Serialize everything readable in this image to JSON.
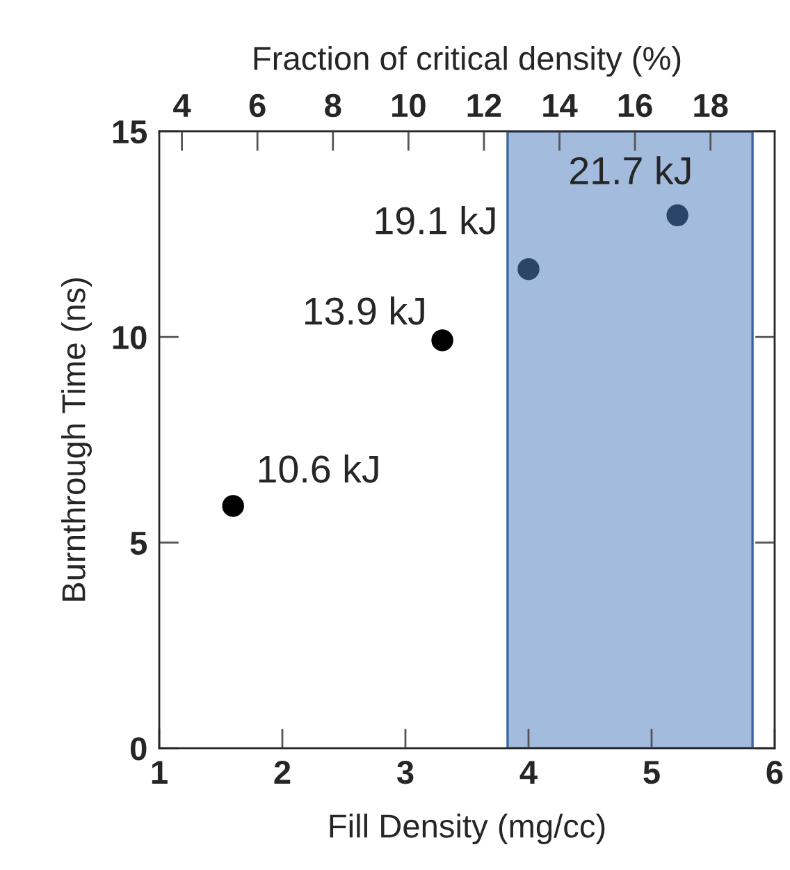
{
  "chart_data": {
    "type": "scatter",
    "xlabel": "Fill Density (mg/cc)",
    "ylabel": "Burnthrough Time (ns)",
    "x2label": "Fraction of critical density (%)",
    "x": [
      1.6,
      3.3,
      4.0,
      5.21
    ],
    "series": [
      {
        "values": [
          5.89,
          9.92,
          11.65,
          12.96
        ],
        "colors": [
          "#000000",
          "#000000",
          "#2b4568",
          "#2b4568"
        ]
      }
    ],
    "annotations": [
      {
        "text": "10.6 kJ",
        "x": 1.6,
        "y": 5.89
      },
      {
        "text": "13.9 kJ",
        "x": 3.3,
        "y": 9.92
      },
      {
        "text": "19.1 kJ",
        "x": 4.0,
        "y": 11.65
      },
      {
        "text": "21.7 kJ",
        "x": 5.21,
        "y": 12.96
      }
    ],
    "xlim": [
      1,
      6
    ],
    "xticks": [
      1,
      2,
      3,
      4,
      5,
      6
    ],
    "ylim": [
      0,
      15
    ],
    "yticks": [
      0,
      5,
      10,
      15
    ],
    "x2lim": [
      3.4,
      19.7
    ],
    "x2ticks": [
      4,
      6,
      8,
      10,
      12,
      14,
      16,
      18
    ],
    "bands": [
      {
        "axis": "x",
        "from": 3.83,
        "to": 5.82,
        "color": "#a3bbdd"
      }
    ],
    "marker": "circle",
    "grid": false,
    "legend": false
  }
}
